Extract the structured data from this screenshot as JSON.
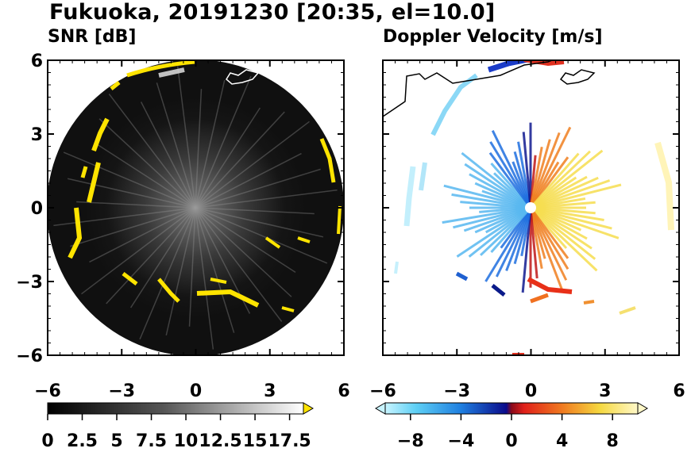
{
  "header": {
    "title": "Fukuoka, 20191230 [20:35, el=10.0]"
  },
  "colors": {
    "snr_background": "#101010",
    "snr_echo_yellow": "#ffe400",
    "snr_echo_white": "#e0e0e0",
    "doppler_negative": "#1040c0",
    "doppler_positive": "#e03010",
    "coastline": "#000000"
  },
  "chart_data": [
    {
      "type": "heatmap",
      "title": "SNR [dB]",
      "projection": "polar PPI",
      "xlim": [
        -6,
        6
      ],
      "ylim": [
        -6,
        6
      ],
      "xticks": [
        "−6",
        "−3",
        "0",
        "3",
        "6"
      ],
      "yticks": [
        "6",
        "3",
        "0",
        "−3",
        "−6"
      ],
      "colorbar": {
        "min": 0,
        "max": 18.5,
        "extend": "max",
        "colors": "black to white, yellow at max",
        "tick_labels": [
          "0",
          "2.5",
          "5",
          "7.5",
          "10",
          "12.5",
          "15",
          "17.5"
        ]
      }
    },
    {
      "type": "heatmap",
      "title": "Doppler Velocity [m/s]",
      "projection": "polar PPI",
      "xlim": [
        -6,
        6
      ],
      "ylim": [
        -6,
        6
      ],
      "xticks": [
        "−6",
        "−3",
        "0",
        "3",
        "6"
      ],
      "yticks": [],
      "colorbar": {
        "min": -10,
        "max": 10,
        "extend": "both",
        "colors": "cyan-blue (negative) to red-yellow (positive)",
        "tick_labels": [
          "−8",
          "−4",
          "0",
          "4",
          "8"
        ]
      }
    }
  ]
}
